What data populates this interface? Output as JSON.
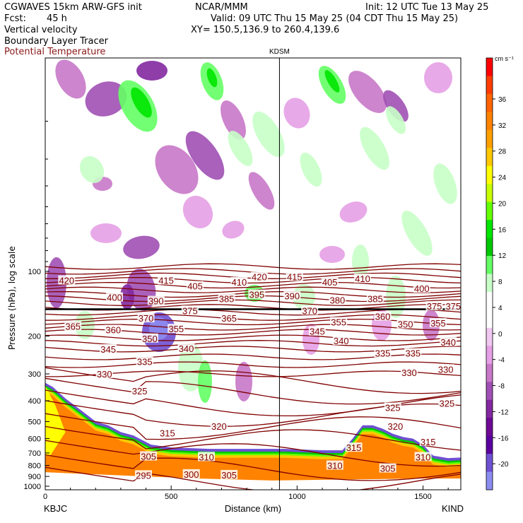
{
  "header": {
    "model": "CGWAVES 15km ARW-GFS init",
    "org": "NCAR/MMM",
    "init": "Init: 12 UTC Tue 13 May 25",
    "fcst_label": "Fcst:",
    "fcst_value": "45 h",
    "valid": "Valid: 09 UTC Thu 15 May 25 (04 CDT Thu 15 May 25)",
    "xy": "XY= 150.5,136.9 to 260.4,139.6",
    "field1": "Vertical velocity",
    "field2": "Boundary Layer Tracer",
    "field3": "Potential Temperature",
    "field3_color": "#8b1a1a"
  },
  "chart_data": {
    "type": "heatmap",
    "title": "KDSM",
    "xlabel": "Distance (km)",
    "ylabel": "Pressure (hPa), log scale",
    "x_ticks": [
      0,
      500,
      1000,
      1500
    ],
    "xlim": [
      0,
      1650
    ],
    "y_ticks": [
      100,
      200,
      300,
      400,
      500,
      600,
      700,
      800,
      900,
      1000
    ],
    "y_scale": "log",
    "ylim_hpa": [
      1050,
      20
    ],
    "left_station": "KBJC",
    "right_station": "KIND",
    "marker_station_x_km": 930,
    "colorbar": {
      "unit": "cm s⁻¹",
      "labels": [
        "36",
        "32",
        "28",
        "24",
        "20",
        "16",
        "12",
        "8",
        "4",
        "0",
        "-4",
        "-8",
        "-12",
        "-16",
        "-20"
      ],
      "colors": [
        "#ff0000",
        "#ff3c00",
        "#ff6400",
        "#ff8200",
        "#ffa000",
        "#ffc800",
        "#ffff00",
        "#c8ff00",
        "#64ff00",
        "#00e600",
        "#00c800",
        "#64ff64",
        "#c8ffc8",
        "#ffffff",
        "#ffffff",
        "#f0c8f0",
        "#e6a0e6",
        "#c878c8",
        "#a050b4",
        "#8228a0",
        "#6e0a96",
        "#5a00a0",
        "#6e50d2",
        "#8c8cf0"
      ]
    },
    "theta_labels": [
      {
        "v": "420",
        "x": 85,
        "p": 110
      },
      {
        "v": "415",
        "x": 480,
        "p": 110
      },
      {
        "v": "410",
        "x": 770,
        "p": 112
      },
      {
        "v": "420",
        "x": 850,
        "p": 106
      },
      {
        "v": "415",
        "x": 990,
        "p": 106
      },
      {
        "v": "405",
        "x": 1130,
        "p": 112
      },
      {
        "v": "410",
        "x": 1260,
        "p": 108
      },
      {
        "v": "405",
        "x": 595,
        "p": 117
      },
      {
        "v": "400",
        "x": 275,
        "p": 132
      },
      {
        "v": "390",
        "x": 440,
        "p": 137
      },
      {
        "v": "385",
        "x": 720,
        "p": 134
      },
      {
        "v": "395",
        "x": 840,
        "p": 128
      },
      {
        "v": "390",
        "x": 980,
        "p": 130
      },
      {
        "v": "380",
        "x": 1160,
        "p": 136
      },
      {
        "v": "385",
        "x": 1310,
        "p": 134
      },
      {
        "v": "400",
        "x": 1495,
        "p": 120
      },
      {
        "v": "375",
        "x": 1545,
        "p": 145
      },
      {
        "v": "375",
        "x": 1620,
        "p": 145
      },
      {
        "v": "375",
        "x": 575,
        "p": 152
      },
      {
        "v": "370",
        "x": 1050,
        "p": 152
      },
      {
        "v": "370",
        "x": 400,
        "p": 165
      },
      {
        "v": "365",
        "x": 730,
        "p": 165
      },
      {
        "v": "360",
        "x": 1340,
        "p": 162
      },
      {
        "v": "355",
        "x": 1165,
        "p": 172
      },
      {
        "v": "350",
        "x": 1430,
        "p": 176
      },
      {
        "v": "355",
        "x": 1560,
        "p": 174
      },
      {
        "v": "365",
        "x": 110,
        "p": 180
      },
      {
        "v": "360",
        "x": 270,
        "p": 187
      },
      {
        "v": "355",
        "x": 520,
        "p": 185
      },
      {
        "v": "345",
        "x": 1080,
        "p": 190
      },
      {
        "v": "350",
        "x": 415,
        "p": 205
      },
      {
        "v": "340",
        "x": 1175,
        "p": 210
      },
      {
        "v": "340",
        "x": 1600,
        "p": 213
      },
      {
        "v": "345",
        "x": 250,
        "p": 230
      },
      {
        "v": "340",
        "x": 560,
        "p": 228
      },
      {
        "v": "335",
        "x": 1340,
        "p": 240
      },
      {
        "v": "335",
        "x": 1460,
        "p": 240
      },
      {
        "v": "335",
        "x": 395,
        "p": 263
      },
      {
        "v": "330",
        "x": 235,
        "p": 300
      },
      {
        "v": "330",
        "x": 1445,
        "p": 295
      },
      {
        "v": "330",
        "x": 1590,
        "p": 285
      },
      {
        "v": "325",
        "x": 375,
        "p": 360
      },
      {
        "v": "325",
        "x": 1380,
        "p": 430
      },
      {
        "v": "325",
        "x": 1595,
        "p": 410
      },
      {
        "v": "320",
        "x": 690,
        "p": 525
      },
      {
        "v": "320",
        "x": 1390,
        "p": 525
      },
      {
        "v": "315",
        "x": 485,
        "p": 565
      },
      {
        "v": "315",
        "x": 1225,
        "p": 660
      },
      {
        "v": "315",
        "x": 1520,
        "p": 620
      },
      {
        "v": "310",
        "x": 640,
        "p": 730
      },
      {
        "v": "310",
        "x": 1500,
        "p": 730
      },
      {
        "v": "310",
        "x": 1150,
        "p": 800
      },
      {
        "v": "305",
        "x": 410,
        "p": 725
      },
      {
        "v": "305",
        "x": 1360,
        "p": 825
      },
      {
        "v": "300",
        "x": 580,
        "p": 878
      },
      {
        "v": "305",
        "x": 730,
        "p": 885
      },
      {
        "v": "295",
        "x": 390,
        "p": 888
      }
    ]
  }
}
